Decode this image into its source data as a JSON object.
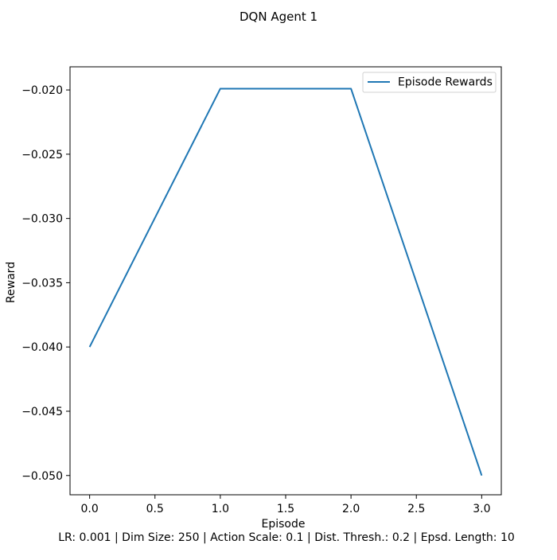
{
  "chart_data": {
    "type": "line",
    "title": "DQN Agent 1",
    "xlabel": "Episode",
    "ylabel": "Reward",
    "footer": "LR: 0.001 | Dim Size: 250 | Action Scale: 0.1 | Dist. Thresh.: 0.2 | Epsd. Length: 10",
    "xlim": [
      -0.15,
      3.15
    ],
    "ylim": [
      -0.0515,
      -0.0182
    ],
    "x_ticks": [
      0.0,
      0.5,
      1.0,
      1.5,
      2.0,
      2.5,
      3.0
    ],
    "x_tick_labels": [
      "0.0",
      "0.5",
      "1.0",
      "1.5",
      "2.0",
      "2.5",
      "3.0"
    ],
    "y_ticks": [
      -0.05,
      -0.045,
      -0.04,
      -0.035,
      -0.03,
      -0.025,
      -0.02
    ],
    "y_tick_labels": [
      "−0.050",
      "−0.045",
      "−0.040",
      "−0.035",
      "−0.030",
      "−0.025",
      "−0.020"
    ],
    "grid": false,
    "legend_position": "top-right",
    "series": [
      {
        "name": "Episode Rewards",
        "color": "#1f77b4",
        "x": [
          0,
          1,
          2,
          3
        ],
        "y": [
          -0.04,
          -0.0199,
          -0.0199,
          -0.05
        ]
      }
    ]
  }
}
